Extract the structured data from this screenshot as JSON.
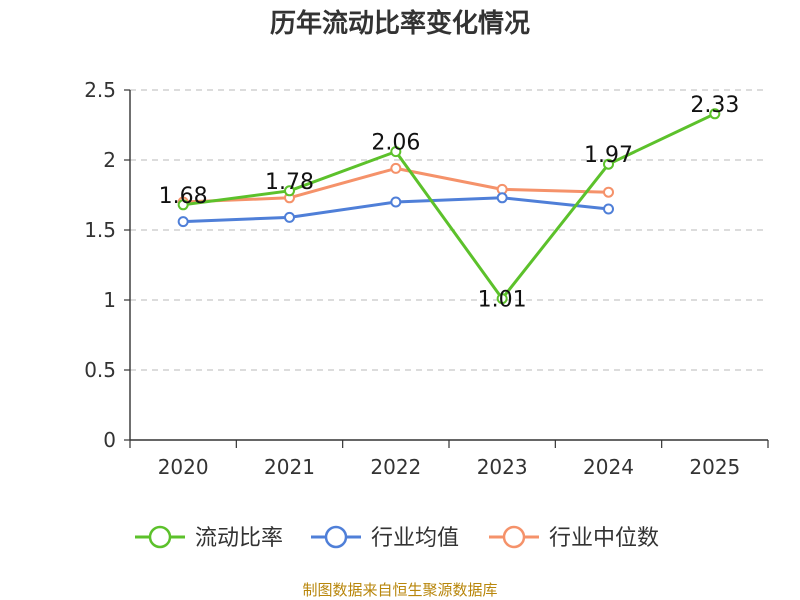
{
  "chart_data": {
    "type": "line",
    "title": "历年流动比率变化情况",
    "categories": [
      "2020",
      "2021",
      "2022",
      "2023",
      "2024",
      "2025"
    ],
    "ylim": [
      0,
      2.5
    ],
    "yticks": [
      "0",
      "0.5",
      "1",
      "1.5",
      "2",
      "2.5"
    ],
    "grid": true,
    "legend_position": "bottom",
    "series": [
      {
        "name": "流动比率",
        "color": "#5cc12b",
        "values": [
          1.68,
          1.78,
          2.06,
          1.01,
          1.97,
          2.33
        ],
        "labels": [
          "1.68",
          "1.78",
          "2.06",
          "1.01",
          "1.97",
          "2.33"
        ]
      },
      {
        "name": "行业均值",
        "color": "#4f7fd8",
        "values": [
          1.56,
          1.59,
          1.7,
          1.73,
          1.65,
          null
        ]
      },
      {
        "name": "行业中位数",
        "color": "#f5926a",
        "values": [
          1.7,
          1.73,
          1.94,
          1.79,
          1.77,
          null
        ]
      }
    ],
    "source": "制图数据来自恒生聚源数据库"
  }
}
